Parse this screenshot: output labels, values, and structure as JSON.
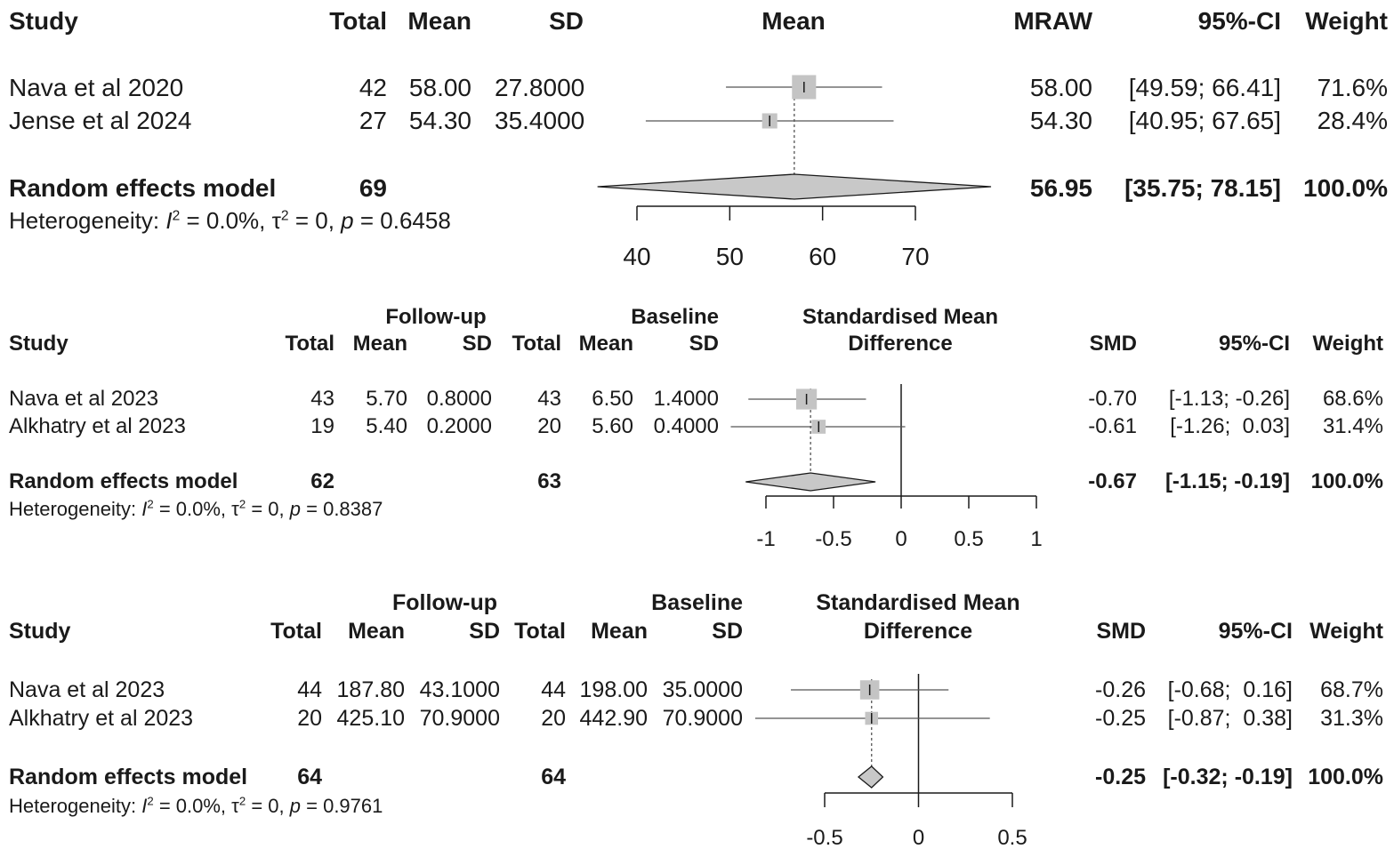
{
  "chart_data": [
    {
      "type": "forest",
      "axis_title": "Mean",
      "headers": {
        "study": "Study",
        "total": "Total",
        "mean": "Mean",
        "sd": "SD",
        "effect": "MRAW",
        "ci": "95%-CI",
        "weight": "Weight"
      },
      "studies": [
        {
          "name": "Nava et al 2020",
          "total": "42",
          "mean": "58.00",
          "sd": "27.8000",
          "effect": "58.00",
          "ci": "[49.59; 66.41]",
          "weight": "71.6%",
          "est": 58.0,
          "lo": 49.59,
          "hi": 66.41,
          "w": 71.6
        },
        {
          "name": "Jense et al 2024",
          "total": "27",
          "mean": "54.30",
          "sd": "35.4000",
          "effect": "54.30",
          "ci": "[40.95; 67.65]",
          "weight": "28.4%",
          "est": 54.3,
          "lo": 40.95,
          "hi": 67.65,
          "w": 28.4
        }
      ],
      "pooled": {
        "label": "Random effects model",
        "total": "69",
        "effect": "56.95",
        "ci": "[35.75; 78.15]",
        "weight": "100.0%",
        "est": 56.95,
        "lo": 35.75,
        "hi": 78.15
      },
      "heterogeneity": {
        "prefix": "Heterogeneity:",
        "i2": "= 0.0%,",
        "tau2": "= 0,",
        "p": "= 0.6458"
      },
      "xaxis": {
        "ticks": [
          40,
          50,
          60,
          70
        ],
        "tick_labels": [
          "40",
          "50",
          "60",
          "70"
        ],
        "null_line": null
      }
    },
    {
      "type": "forest",
      "axis_title": [
        "Standardised Mean",
        "Difference"
      ],
      "group_headers": {
        "g1": "Follow-up",
        "g2": "Baseline"
      },
      "headers": {
        "study": "Study",
        "total": "Total",
        "mean": "Mean",
        "sd": "SD",
        "effect": "SMD",
        "ci": "95%-CI",
        "weight": "Weight"
      },
      "studies": [
        {
          "name": "Nava et al 2023",
          "total1": "43",
          "mean1": "5.70",
          "sd1": "0.8000",
          "total2": "43",
          "mean2": "6.50",
          "sd2": "1.4000",
          "effect": "-0.70",
          "ci": "[-1.13; -0.26]",
          "weight": "68.6%",
          "est": -0.7,
          "lo": -1.13,
          "hi": -0.26,
          "w": 68.6
        },
        {
          "name": "Alkhatry et al 2023",
          "total1": "19",
          "mean1": "5.40",
          "sd1": "0.2000",
          "total2": "20",
          "mean2": "5.60",
          "sd2": "0.4000",
          "effect": "-0.61",
          "ci": "[-1.26;  0.03]",
          "weight": "31.4%",
          "est": -0.61,
          "lo": -1.26,
          "hi": 0.03,
          "w": 31.4
        }
      ],
      "pooled": {
        "label": "Random effects model",
        "total1": "62",
        "total2": "63",
        "effect": "-0.67",
        "ci": "[-1.15; -0.19]",
        "weight": "100.0%",
        "est": -0.67,
        "lo": -1.15,
        "hi": -0.19
      },
      "heterogeneity": {
        "prefix": "Heterogeneity:",
        "i2": "= 0.0%,",
        "tau2": "= 0,",
        "p": "= 0.8387"
      },
      "xaxis": {
        "ticks": [
          -1,
          -0.5,
          0,
          0.5,
          1
        ],
        "tick_labels": [
          "-1",
          "-0.5",
          "0",
          "0.5",
          "1"
        ],
        "null_line": 0
      }
    },
    {
      "type": "forest",
      "axis_title": [
        "Standardised Mean",
        "Difference"
      ],
      "group_headers": {
        "g1": "Follow-up",
        "g2": "Baseline"
      },
      "headers": {
        "study": "Study",
        "total": "Total",
        "mean": "Mean",
        "sd": "SD",
        "effect": "SMD",
        "ci": "95%-CI",
        "weight": "Weight"
      },
      "studies": [
        {
          "name": "Nava et al 2023",
          "total1": "44",
          "mean1": "187.80",
          "sd1": "43.1000",
          "total2": "44",
          "mean2": "198.00",
          "sd2": "35.0000",
          "effect": "-0.26",
          "ci": "[-0.68;  0.16]",
          "weight": "68.7%",
          "est": -0.26,
          "lo": -0.68,
          "hi": 0.16,
          "w": 68.7
        },
        {
          "name": "Alkhatry et al 2023",
          "total1": "20",
          "mean1": "425.10",
          "sd1": "70.9000",
          "total2": "20",
          "mean2": "442.90",
          "sd2": "70.9000",
          "effect": "-0.25",
          "ci": "[-0.87;  0.38]",
          "weight": "31.3%",
          "est": -0.25,
          "lo": -0.87,
          "hi": 0.38,
          "w": 31.3
        }
      ],
      "pooled": {
        "label": "Random effects model",
        "total1": "64",
        "total2": "64",
        "effect": "-0.25",
        "ci": "[-0.32; -0.19]",
        "weight": "100.0%",
        "est": -0.25,
        "lo": -0.32,
        "hi": -0.19
      },
      "heterogeneity": {
        "prefix": "Heterogeneity:",
        "i2": "= 0.0%,",
        "tau2": "= 0,",
        "p": "= 0.9761"
      },
      "xaxis": {
        "ticks": [
          -0.5,
          0,
          0.5
        ],
        "tick_labels": [
          "-0.5",
          "0",
          "0.5"
        ],
        "null_line": 0
      }
    }
  ],
  "colors": {
    "box": "#c4c4c4",
    "diamond": "#c8c8c8",
    "line": "#1a1a1a",
    "ci_line": "#555555"
  }
}
